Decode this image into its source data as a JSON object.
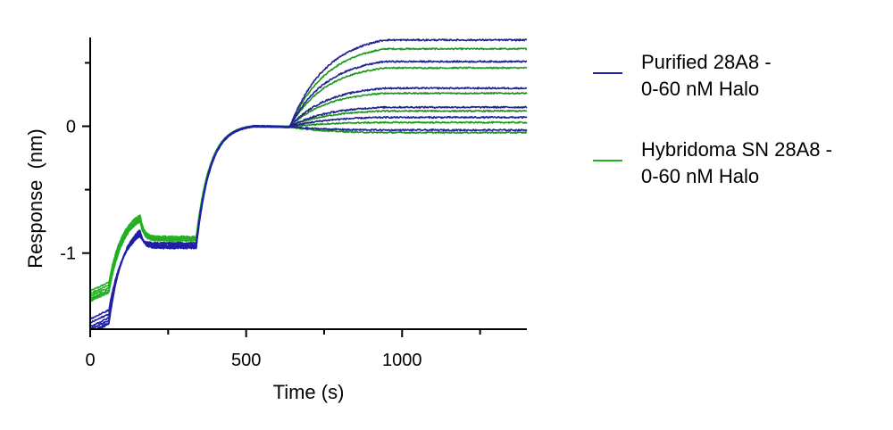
{
  "chart_data": {
    "type": "line",
    "title": "",
    "xlabel": "Time (s)",
    "ylabel": "Response  (nm)",
    "xlim": [
      0,
      1400
    ],
    "ylim": [
      -1.6,
      0.7
    ],
    "x_ticks": [
      0,
      500,
      1000
    ],
    "y_ticks": [
      0,
      -1
    ],
    "x_minor_ticks": [
      250,
      750,
      1250
    ],
    "y_minor_ticks": [
      0.5,
      -0.5
    ],
    "grid": false,
    "legend_position": "right",
    "series": [
      {
        "name": "Purified 28A8 -\n0-60 nM Halo",
        "color": "#1f1fa6",
        "traces": [
          {
            "baseline_start": -1.6,
            "loading_end": -0.84,
            "wash_level": -0.95,
            "assoc_end": 0.68
          },
          {
            "baseline_start": -1.58,
            "loading_end": -0.85,
            "wash_level": -0.94,
            "assoc_end": 0.51
          },
          {
            "baseline_start": -1.55,
            "loading_end": -0.86,
            "wash_level": -0.93,
            "assoc_end": 0.3
          },
          {
            "baseline_start": -1.52,
            "loading_end": -0.87,
            "wash_level": -0.92,
            "assoc_end": 0.15
          },
          {
            "baseline_start": -1.62,
            "loading_end": -0.83,
            "wash_level": -0.95,
            "assoc_end": 0.07
          },
          {
            "baseline_start": -1.63,
            "loading_end": -0.82,
            "wash_level": -0.96,
            "assoc_end": -0.03
          }
        ]
      },
      {
        "name": "Hybridoma SN 28A8 -\n0-60 nM Halo",
        "color": "#22b022",
        "traces": [
          {
            "baseline_start": -1.3,
            "loading_end": -0.7,
            "wash_level": -0.87,
            "assoc_end": 0.61
          },
          {
            "baseline_start": -1.32,
            "loading_end": -0.71,
            "wash_level": -0.88,
            "assoc_end": 0.46
          },
          {
            "baseline_start": -1.34,
            "loading_end": -0.72,
            "wash_level": -0.88,
            "assoc_end": 0.26
          },
          {
            "baseline_start": -1.36,
            "loading_end": -0.73,
            "wash_level": -0.89,
            "assoc_end": 0.12
          },
          {
            "baseline_start": -1.37,
            "loading_end": -0.74,
            "wash_level": -0.9,
            "assoc_end": 0.03
          },
          {
            "baseline_start": -1.38,
            "loading_end": -0.75,
            "wash_level": -0.9,
            "assoc_end": -0.05
          }
        ]
      }
    ],
    "phases": {
      "baseline_end": 60,
      "loading_end": 160,
      "wash_end": 340,
      "reference_end": 525,
      "association_start": 640,
      "association_end": 945,
      "run_end": 1400
    }
  }
}
